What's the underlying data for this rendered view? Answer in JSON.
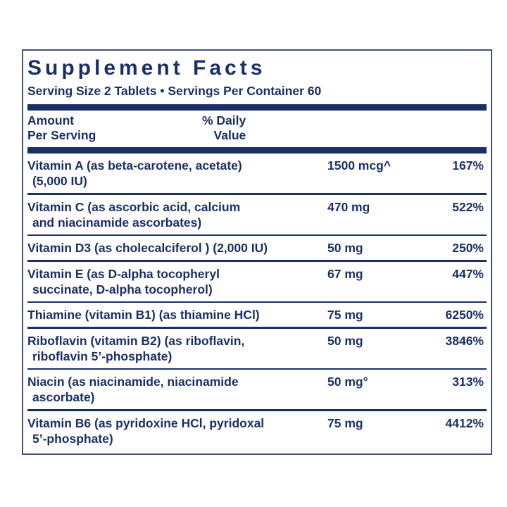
{
  "panel": {
    "title": "Supplement Facts",
    "serving_line": "Serving Size 2 Tablets • Servings Per Container 60",
    "colors": {
      "navy": "#1b2f66",
      "border": "#3f4f80",
      "background": "#ffffff"
    },
    "columns": {
      "amount_line1": "Amount",
      "amount_line2": "Per Serving",
      "daily_value_line1": "% Daily",
      "daily_value_line2": "Value"
    },
    "rows": [
      {
        "name_lines": [
          "Vitamin A (as beta-carotene, acetate)",
          "(5,000 IU)"
        ],
        "amount": "1500 mcg^",
        "daily_value": "167%"
      },
      {
        "name_lines": [
          "Vitamin C (as ascorbic acid, calcium",
          "and niacinamide ascorbates)"
        ],
        "amount": "470 mg",
        "daily_value": "522%"
      },
      {
        "name_lines": [
          "Vitamin D3 (as cholecalciferol ) (2,000 IU)"
        ],
        "amount": "50 mg",
        "daily_value": "250%"
      },
      {
        "name_lines": [
          "Vitamin E (as D-alpha tocopheryl",
          "succinate, D-alpha tocopherol)"
        ],
        "amount": "67 mg",
        "daily_value": "447%"
      },
      {
        "name_lines": [
          "Thiamine (vitamin B1) (as thiamine HCl)"
        ],
        "amount": "75 mg",
        "daily_value": "6250%"
      },
      {
        "name_lines": [
          "Riboflavin (vitamin B2) (as riboflavin,",
          "riboflavin 5’-phosphate)"
        ],
        "amount": "50 mg",
        "daily_value": "3846%"
      },
      {
        "name_lines": [
          "Niacin (as niacinamide, niacinamide",
          "ascorbate)"
        ],
        "amount": "50 mg°",
        "daily_value": "313%"
      },
      {
        "name_lines": [
          "Vitamin B6 (as pyridoxine HCl, pyridoxal",
          "5’-phosphate)"
        ],
        "amount": "75 mg",
        "daily_value": "4412%"
      }
    ]
  }
}
